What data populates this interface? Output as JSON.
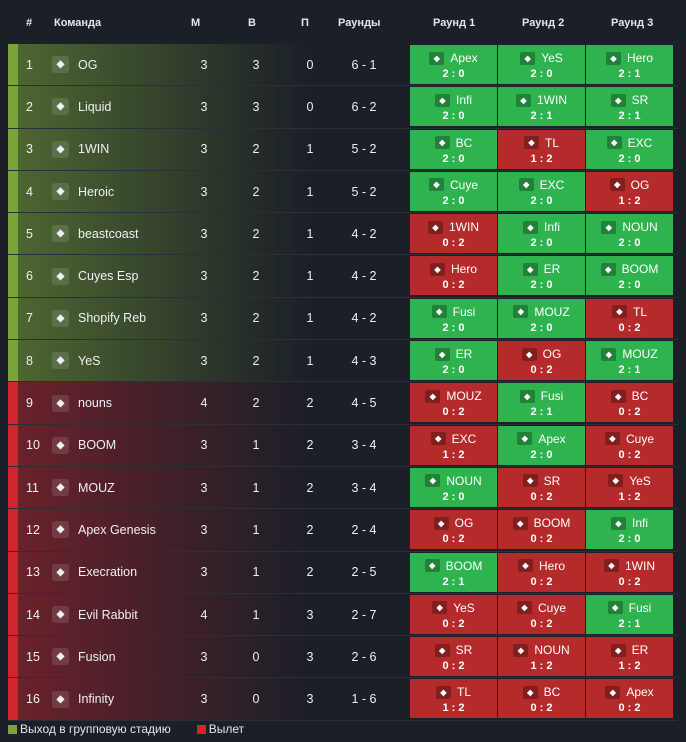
{
  "header": {
    "num": "#",
    "team": "Команда",
    "m": "М",
    "w": "В",
    "l": "П",
    "rounds": "Раунды",
    "r1": "Раунд 1",
    "r2": "Раунд 2",
    "r3": "Раунд 3"
  },
  "colors": {
    "advance": "#7aa43a",
    "eliminated": "#d1242f",
    "win": "#2eb34f",
    "loss": "#b52a2a"
  },
  "rows": [
    {
      "num": "1",
      "team": "OG",
      "m": "3",
      "w": "3",
      "l": "0",
      "rounds": "6 - 1",
      "status": "advance",
      "r": [
        {
          "op": "Apex",
          "sc": "2 : 0",
          "res": "win"
        },
        {
          "op": "YeS",
          "sc": "2 : 0",
          "res": "win"
        },
        {
          "op": "Hero",
          "sc": "2 : 1",
          "res": "win"
        }
      ]
    },
    {
      "num": "2",
      "team": "Liquid",
      "m": "3",
      "w": "3",
      "l": "0",
      "rounds": "6 - 2",
      "status": "advance",
      "r": [
        {
          "op": "Infi",
          "sc": "2 : 0",
          "res": "win"
        },
        {
          "op": "1WIN",
          "sc": "2 : 1",
          "res": "win"
        },
        {
          "op": "SR",
          "sc": "2 : 1",
          "res": "win"
        }
      ]
    },
    {
      "num": "3",
      "team": "1WIN",
      "m": "3",
      "w": "2",
      "l": "1",
      "rounds": "5 - 2",
      "status": "advance",
      "r": [
        {
          "op": "BC",
          "sc": "2 : 0",
          "res": "win"
        },
        {
          "op": "TL",
          "sc": "1 : 2",
          "res": "loss"
        },
        {
          "op": "EXC",
          "sc": "2 : 0",
          "res": "win"
        }
      ]
    },
    {
      "num": "4",
      "team": "Heroic",
      "m": "3",
      "w": "2",
      "l": "1",
      "rounds": "5 - 2",
      "status": "advance",
      "r": [
        {
          "op": "Cuye",
          "sc": "2 : 0",
          "res": "win"
        },
        {
          "op": "EXC",
          "sc": "2 : 0",
          "res": "win"
        },
        {
          "op": "OG",
          "sc": "1 : 2",
          "res": "loss"
        }
      ]
    },
    {
      "num": "5",
      "team": "beastcoast",
      "m": "3",
      "w": "2",
      "l": "1",
      "rounds": "4 - 2",
      "status": "advance",
      "r": [
        {
          "op": "1WIN",
          "sc": "0 : 2",
          "res": "loss"
        },
        {
          "op": "Infi",
          "sc": "2 : 0",
          "res": "win"
        },
        {
          "op": "NOUN",
          "sc": "2 : 0",
          "res": "win"
        }
      ]
    },
    {
      "num": "6",
      "team": "Cuyes Esp",
      "m": "3",
      "w": "2",
      "l": "1",
      "rounds": "4 - 2",
      "status": "advance",
      "r": [
        {
          "op": "Hero",
          "sc": "0 : 2",
          "res": "loss"
        },
        {
          "op": "ER",
          "sc": "2 : 0",
          "res": "win"
        },
        {
          "op": "BOOM",
          "sc": "2 : 0",
          "res": "win"
        }
      ]
    },
    {
      "num": "7",
      "team": "Shopify Reb",
      "m": "3",
      "w": "2",
      "l": "1",
      "rounds": "4 - 2",
      "status": "advance",
      "r": [
        {
          "op": "Fusi",
          "sc": "2 : 0",
          "res": "win"
        },
        {
          "op": "MOUZ",
          "sc": "2 : 0",
          "res": "win"
        },
        {
          "op": "TL",
          "sc": "0 : 2",
          "res": "loss"
        }
      ]
    },
    {
      "num": "8",
      "team": "YeS",
      "m": "3",
      "w": "2",
      "l": "1",
      "rounds": "4 - 3",
      "status": "advance",
      "r": [
        {
          "op": "ER",
          "sc": "2 : 0",
          "res": "win"
        },
        {
          "op": "OG",
          "sc": "0 : 2",
          "res": "loss"
        },
        {
          "op": "MOUZ",
          "sc": "2 : 1",
          "res": "win"
        }
      ]
    },
    {
      "num": "9",
      "team": "nouns",
      "m": "4",
      "w": "2",
      "l": "2",
      "rounds": "4 - 5",
      "status": "eliminated",
      "r": [
        {
          "op": "MOUZ",
          "sc": "0 : 2",
          "res": "loss"
        },
        {
          "op": "Fusi",
          "sc": "2 : 1",
          "res": "win"
        },
        {
          "op": "BC",
          "sc": "0 : 2",
          "res": "loss"
        }
      ]
    },
    {
      "num": "10",
      "team": "BOOM",
      "m": "3",
      "w": "1",
      "l": "2",
      "rounds": "3 - 4",
      "status": "eliminated",
      "r": [
        {
          "op": "EXC",
          "sc": "1 : 2",
          "res": "loss"
        },
        {
          "op": "Apex",
          "sc": "2 : 0",
          "res": "win"
        },
        {
          "op": "Cuye",
          "sc": "0 : 2",
          "res": "loss"
        }
      ]
    },
    {
      "num": "11",
      "team": "MOUZ",
      "m": "3",
      "w": "1",
      "l": "2",
      "rounds": "3 - 4",
      "status": "eliminated",
      "r": [
        {
          "op": "NOUN",
          "sc": "2 : 0",
          "res": "win"
        },
        {
          "op": "SR",
          "sc": "0 : 2",
          "res": "loss"
        },
        {
          "op": "YeS",
          "sc": "1 : 2",
          "res": "loss"
        }
      ]
    },
    {
      "num": "12",
      "team": "Apex Genesis",
      "m": "3",
      "w": "1",
      "l": "2",
      "rounds": "2 - 4",
      "status": "eliminated",
      "r": [
        {
          "op": "OG",
          "sc": "0 : 2",
          "res": "loss"
        },
        {
          "op": "BOOM",
          "sc": "0 : 2",
          "res": "loss"
        },
        {
          "op": "Infi",
          "sc": "2 : 0",
          "res": "win"
        }
      ]
    },
    {
      "num": "13",
      "team": "Execration",
      "m": "3",
      "w": "1",
      "l": "2",
      "rounds": "2 - 5",
      "status": "eliminated",
      "r": [
        {
          "op": "BOOM",
          "sc": "2 : 1",
          "res": "win"
        },
        {
          "op": "Hero",
          "sc": "0 : 2",
          "res": "loss"
        },
        {
          "op": "1WIN",
          "sc": "0 : 2",
          "res": "loss"
        }
      ]
    },
    {
      "num": "14",
      "team": "Evil Rabbit",
      "m": "4",
      "w": "1",
      "l": "3",
      "rounds": "2 - 7",
      "status": "eliminated",
      "r": [
        {
          "op": "YeS",
          "sc": "0 : 2",
          "res": "loss"
        },
        {
          "op": "Cuye",
          "sc": "0 : 2",
          "res": "loss"
        },
        {
          "op": "Fusi",
          "sc": "2 : 1",
          "res": "win"
        }
      ]
    },
    {
      "num": "15",
      "team": "Fusion",
      "m": "3",
      "w": "0",
      "l": "3",
      "rounds": "2 - 6",
      "status": "eliminated",
      "r": [
        {
          "op": "SR",
          "sc": "0 : 2",
          "res": "loss"
        },
        {
          "op": "NOUN",
          "sc": "1 : 2",
          "res": "loss"
        },
        {
          "op": "ER",
          "sc": "1 : 2",
          "res": "loss"
        }
      ]
    },
    {
      "num": "16",
      "team": "Infinity",
      "m": "3",
      "w": "0",
      "l": "3",
      "rounds": "1 - 6",
      "status": "eliminated",
      "r": [
        {
          "op": "TL",
          "sc": "1 : 2",
          "res": "loss"
        },
        {
          "op": "BC",
          "sc": "0 : 2",
          "res": "loss"
        },
        {
          "op": "Apex",
          "sc": "0 : 2",
          "res": "loss"
        }
      ]
    }
  ],
  "legend": {
    "advance": "Выход в групповую стадию",
    "eliminated": "Вылет"
  }
}
